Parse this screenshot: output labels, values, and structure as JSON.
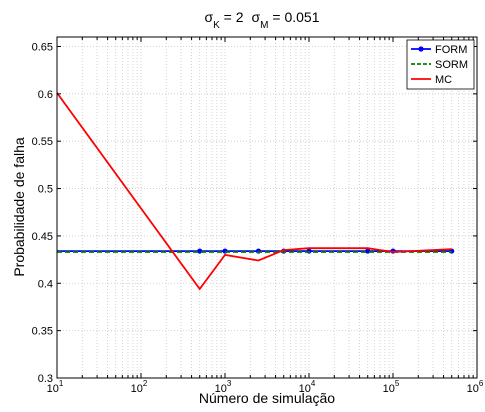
{
  "chart_data": {
    "type": "line",
    "title": {
      "sym1": "σ",
      "sub1": "K",
      "eq1": " = 2",
      "sym2": "σ",
      "sub2": "M",
      "eq2": " = 0.051"
    },
    "xlabel": "Número de simulação",
    "ylabel": "Probabilidade de falha",
    "xscale": "log",
    "xlim": [
      10,
      1000000
    ],
    "ylim": [
      0.3,
      0.66
    ],
    "yticks": [
      "0.3",
      "0.35",
      "0.4",
      "0.45",
      "0.5",
      "0.55",
      "0.6",
      "0.65"
    ],
    "xticks": [
      {
        "base": "10",
        "exp": "1"
      },
      {
        "base": "10",
        "exp": "2"
      },
      {
        "base": "10",
        "exp": "3"
      },
      {
        "base": "10",
        "exp": "4"
      },
      {
        "base": "10",
        "exp": "5"
      },
      {
        "base": "10",
        "exp": "6"
      }
    ],
    "grid": true,
    "legend_position": "top-right",
    "series": [
      {
        "name": "FORM",
        "color": "#0000ff",
        "style": "solid-marker",
        "x": [
          10,
          500,
          1000,
          2500,
          5000,
          10000,
          50000,
          100000,
          500000
        ],
        "y": [
          0.434,
          0.434,
          0.434,
          0.434,
          0.434,
          0.434,
          0.434,
          0.434,
          0.434
        ]
      },
      {
        "name": "SORM",
        "color": "#008000",
        "style": "dashed",
        "x": [
          10,
          500000
        ],
        "y": [
          0.433,
          0.433
        ]
      },
      {
        "name": "MC",
        "color": "#ff0000",
        "style": "solid",
        "x": [
          10,
          500,
          1000,
          2500,
          5000,
          10000,
          50000,
          100000,
          500000
        ],
        "y": [
          0.601,
          0.394,
          0.43,
          0.424,
          0.435,
          0.437,
          0.437,
          0.433,
          0.436
        ]
      }
    ]
  }
}
